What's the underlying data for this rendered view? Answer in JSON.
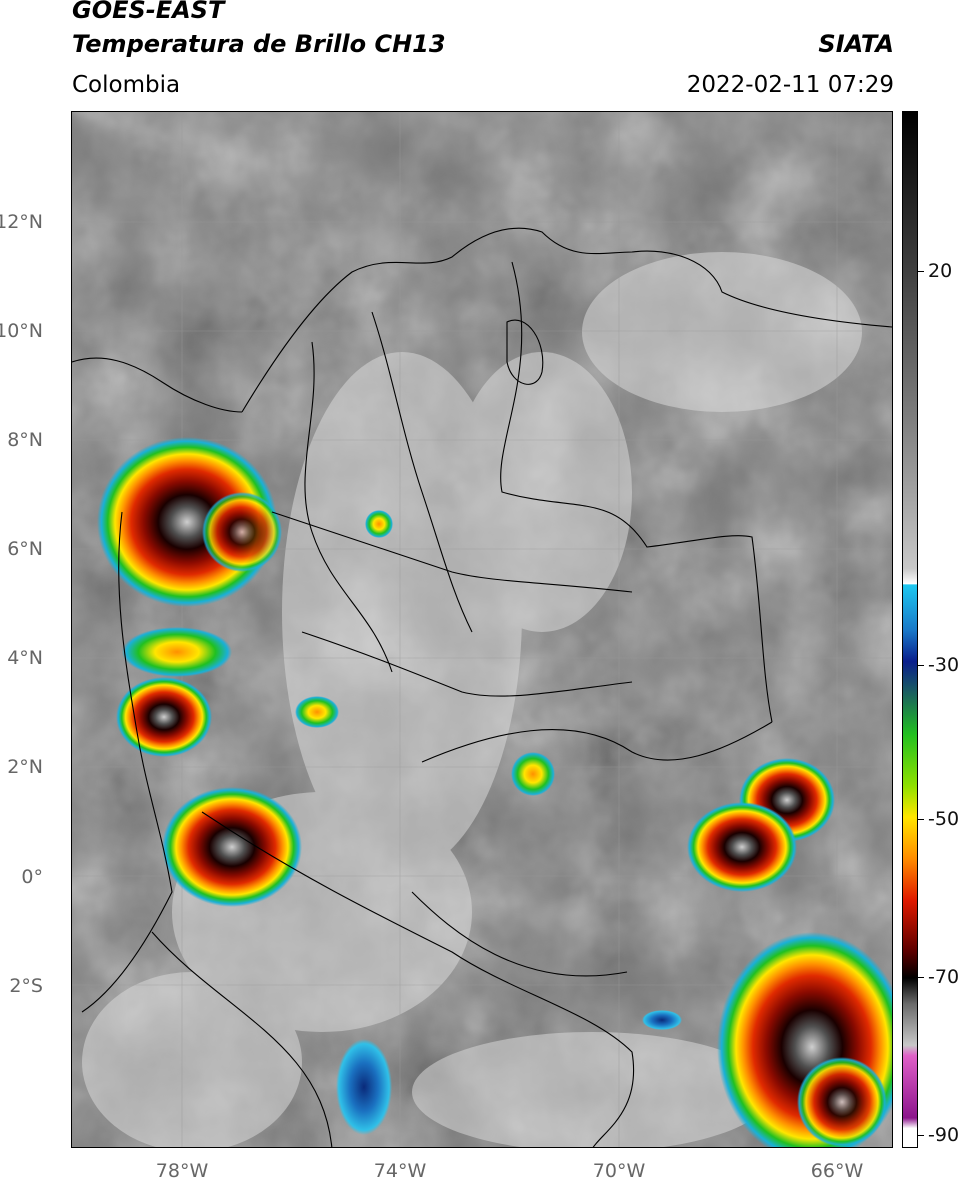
{
  "header": {
    "title_line1": "GOES-EAST",
    "title_line2": "Temperatura de Brillo CH13",
    "agency": "SIATA",
    "region": "Colombia",
    "datetime": "2022-02-11 07:29"
  },
  "map": {
    "lon_range": [
      -80,
      -64.9
    ],
    "lat_range": [
      -5,
      14.1
    ],
    "lat_ticks": [
      "12°N",
      "10°N",
      "8°N",
      "6°N",
      "4°N",
      "2°N",
      "0°",
      "2°S"
    ],
    "lat_tick_values": [
      12,
      10,
      8,
      6,
      4,
      2,
      0,
      -2
    ],
    "lon_ticks": [
      "78°W",
      "74°W",
      "70°W",
      "66°W"
    ],
    "lon_tick_values": [
      -78,
      -74,
      -70,
      -66
    ],
    "gridlines": true
  },
  "colorbar": {
    "tick_labels": [
      "20",
      "-30",
      "-50",
      "-70",
      "-90"
    ],
    "tick_values": [
      20,
      -30,
      -50,
      -70,
      -90
    ],
    "range": [
      -92,
      37
    ],
    "colors": {
      "warm_top": "#000000",
      "gray_mid": "#7f7f7f",
      "white": "#ffffff",
      "cyan": "#1ec8f0",
      "blue": "#0a1e8c",
      "green": "#22c020",
      "yellow": "#ffe600",
      "orange": "#ff8c00",
      "red": "#d81a00",
      "dark_red": "#3c0000",
      "pink": "#e060c8",
      "purple": "#8c148c"
    }
  }
}
